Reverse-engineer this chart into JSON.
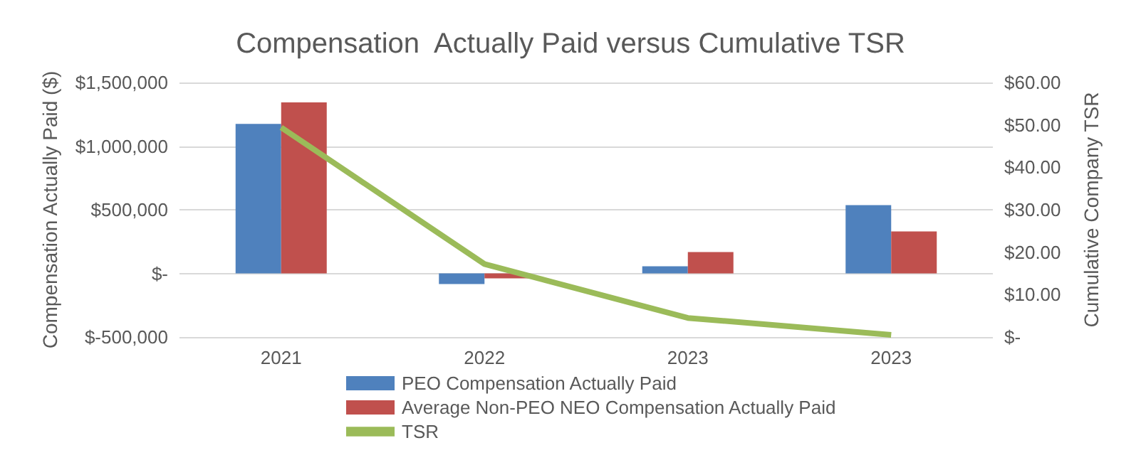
{
  "chart_data": {
    "type": "bar",
    "title": "Compensation  Actually Paid versus Cumulative TSR",
    "ylabel": "Compensation Actually Paid ($)",
    "y2label": "Cumulative Company TSR",
    "categories": [
      "2021",
      "2022",
      "2023",
      "2023"
    ],
    "series": [
      {
        "name": "PEO Compensation Actually Paid",
        "color": "#4f81bd",
        "values": [
          1175000,
          -84000,
          56000,
          537000
        ]
      },
      {
        "name": "Average Non-PEO NEO Compensation Actually Paid",
        "color": "#c0504d",
        "values": [
          1343000,
          -39000,
          168000,
          330000
        ]
      },
      {
        "name": "TSR",
        "type": "line",
        "axis": "y2",
        "color": "#9bbb59",
        "values": [
          49.4,
          17.2,
          4.5,
          0.5
        ]
      }
    ],
    "ylim": [
      -500000,
      1500000
    ],
    "yticks": [
      {
        "value": -500000,
        "label": "$-500,000"
      },
      {
        "value": 0,
        "label": "$-"
      },
      {
        "value": 500000,
        "label": "$500,000"
      },
      {
        "value": 1000000,
        "label": "$1,000,000"
      },
      {
        "value": 1500000,
        "label": "$1,500,000"
      }
    ],
    "y2lim": [
      0,
      60
    ],
    "y2ticks": [
      {
        "value": 0,
        "label": "$-"
      },
      {
        "value": 10,
        "label": "$10.00"
      },
      {
        "value": 20,
        "label": "$20.00"
      },
      {
        "value": 30,
        "label": "$30.00"
      },
      {
        "value": 40,
        "label": "$40.00"
      },
      {
        "value": 50,
        "label": "$50.00"
      },
      {
        "value": 60,
        "label": "$60.00"
      }
    ],
    "grid": "y",
    "legend": "bottom"
  }
}
